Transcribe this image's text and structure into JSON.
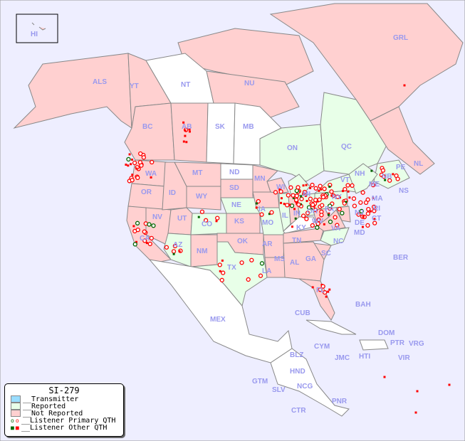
{
  "map": {
    "title": "SI-279",
    "colors": {
      "ocean": "#eeeeff",
      "reported": "#e8ffe8",
      "not_reported": "#ffd0d0",
      "transmitter": "#99ddff",
      "unlisted": "#ffffff",
      "border": "#888888",
      "label": "#9999ee",
      "primary_qth": "#ff0000",
      "primary_qth_green": "#006600"
    },
    "inset_label": "HI",
    "regions": [
      {
        "code": "ALS",
        "status": "not_reported"
      },
      {
        "code": "YT",
        "status": "not_reported"
      },
      {
        "code": "NT",
        "status": "none"
      },
      {
        "code": "NU",
        "status": "not_reported"
      },
      {
        "code": "GRL",
        "status": "not_reported"
      },
      {
        "code": "BC",
        "status": "not_reported"
      },
      {
        "code": "AB",
        "status": "not_reported"
      },
      {
        "code": "SK",
        "status": "none"
      },
      {
        "code": "MB",
        "status": "none"
      },
      {
        "code": "ON",
        "status": "reported"
      },
      {
        "code": "QC",
        "status": "reported"
      },
      {
        "code": "NL",
        "status": "not_reported"
      },
      {
        "code": "NB",
        "status": "reported"
      },
      {
        "code": "PE",
        "status": "reported"
      },
      {
        "code": "NS",
        "status": "reported"
      },
      {
        "code": "WA",
        "status": "not_reported"
      },
      {
        "code": "OR",
        "status": "not_reported"
      },
      {
        "code": "ID",
        "status": "not_reported"
      },
      {
        "code": "MT",
        "status": "not_reported"
      },
      {
        "code": "ND",
        "status": "none"
      },
      {
        "code": "SD",
        "status": "not_reported"
      },
      {
        "code": "MN",
        "status": "not_reported"
      },
      {
        "code": "WI",
        "status": "not_reported"
      },
      {
        "code": "MI",
        "status": "reported"
      },
      {
        "code": "WY",
        "status": "not_reported"
      },
      {
        "code": "NE",
        "status": "reported"
      },
      {
        "code": "IA",
        "status": "not_reported"
      },
      {
        "code": "IL",
        "status": "reported"
      },
      {
        "code": "IN",
        "status": "not_reported"
      },
      {
        "code": "OH",
        "status": "reported"
      },
      {
        "code": "PA",
        "status": "reported"
      },
      {
        "code": "NY",
        "status": "reported"
      },
      {
        "code": "VT",
        "status": "not_reported"
      },
      {
        "code": "NH",
        "status": "reported"
      },
      {
        "code": "ME",
        "status": "reported"
      },
      {
        "code": "MA",
        "status": "reported"
      },
      {
        "code": "RI",
        "status": "reported"
      },
      {
        "code": "CT",
        "status": "reported"
      },
      {
        "code": "NJ",
        "status": "reported"
      },
      {
        "code": "DE",
        "status": "not_reported"
      },
      {
        "code": "MD",
        "status": "not_reported"
      },
      {
        "code": "NV",
        "status": "not_reported"
      },
      {
        "code": "UT",
        "status": "not_reported"
      },
      {
        "code": "CO",
        "status": "reported"
      },
      {
        "code": "KS",
        "status": "not_reported"
      },
      {
        "code": "MO",
        "status": "reported"
      },
      {
        "code": "KY",
        "status": "none"
      },
      {
        "code": "WV",
        "status": "not_reported"
      },
      {
        "code": "VA",
        "status": "not_reported"
      },
      {
        "code": "CA",
        "status": "not_reported"
      },
      {
        "code": "AZ",
        "status": "reported"
      },
      {
        "code": "NM",
        "status": "not_reported"
      },
      {
        "code": "OK",
        "status": "not_reported"
      },
      {
        "code": "AR",
        "status": "not_reported"
      },
      {
        "code": "TN",
        "status": "not_reported"
      },
      {
        "code": "NC",
        "status": "reported"
      },
      {
        "code": "TX",
        "status": "reported"
      },
      {
        "code": "LA",
        "status": "not_reported"
      },
      {
        "code": "MS",
        "status": "not_reported"
      },
      {
        "code": "AL",
        "status": "not_reported"
      },
      {
        "code": "GA",
        "status": "not_reported"
      },
      {
        "code": "SC",
        "status": "not_reported"
      },
      {
        "code": "FL",
        "status": "not_reported"
      },
      {
        "code": "MEX",
        "status": "none"
      },
      {
        "code": "BER",
        "status": "none"
      },
      {
        "code": "BAH",
        "status": "none"
      },
      {
        "code": "CUB",
        "status": "none"
      },
      {
        "code": "DOM",
        "status": "none"
      },
      {
        "code": "PTR",
        "status": "not_reported"
      },
      {
        "code": "VRG",
        "status": "none"
      },
      {
        "code": "VIR",
        "status": "none"
      },
      {
        "code": "CYM",
        "status": "none"
      },
      {
        "code": "JMC",
        "status": "none"
      },
      {
        "code": "HTI",
        "status": "none"
      },
      {
        "code": "BLZ",
        "status": "none"
      },
      {
        "code": "HND",
        "status": "none"
      },
      {
        "code": "GTM",
        "status": "none"
      },
      {
        "code": "SLV",
        "status": "none"
      },
      {
        "code": "NCG",
        "status": "none"
      },
      {
        "code": "CTR",
        "status": "none"
      },
      {
        "code": "PNR",
        "status": "none"
      }
    ]
  },
  "legend": {
    "title": "SI-279",
    "items": [
      {
        "label": "__Transmitter",
        "color": "#99ddff"
      },
      {
        "label": "__Reported",
        "color": "#e8ffe8"
      },
      {
        "label": "__Not Reported",
        "color": "#ffd0d0"
      },
      {
        "label": "__Listener Primary QTH"
      },
      {
        "label": "__Listener Other QTH"
      }
    ]
  }
}
